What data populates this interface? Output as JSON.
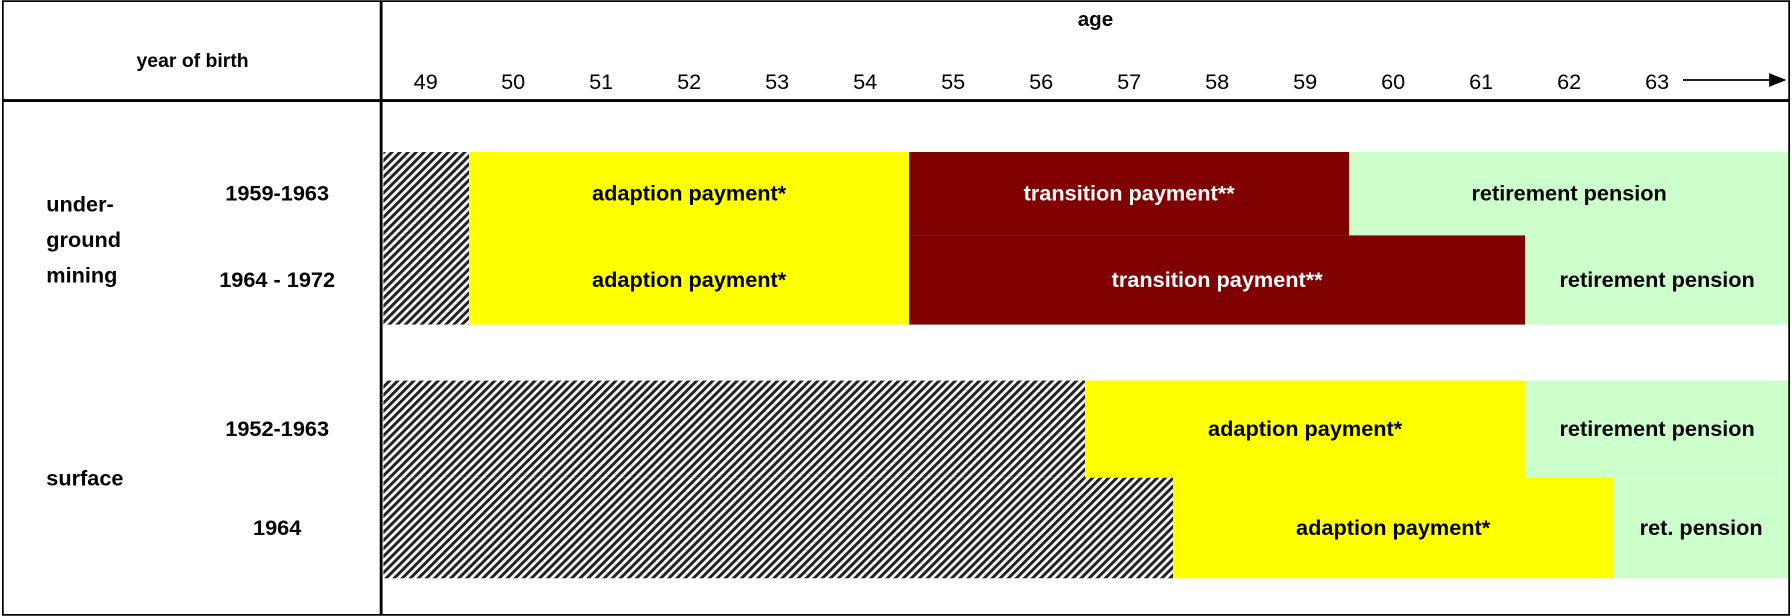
{
  "header": {
    "title": "year of birth",
    "age_label": "age",
    "ages": [
      49,
      50,
      51,
      52,
      53,
      54,
      55,
      56,
      57,
      58,
      59,
      60,
      61,
      62,
      63
    ]
  },
  "groups": [
    {
      "label": [
        "under-",
        "ground",
        "mining"
      ],
      "rows": [
        {
          "year": "1959-1963",
          "segments": [
            {
              "start": 49,
              "end": 49,
              "hatched": true
            },
            {
              "label": "adaption payment*",
              "start": 50,
              "end": 54,
              "color": "#ffff00"
            },
            {
              "label": "transition payment**",
              "start": 55,
              "end": 59,
              "color": "#800000"
            },
            {
              "label": "retirement pension",
              "start": 60,
              "end": 63,
              "color": "#ccffcc"
            }
          ]
        },
        {
          "year": "1964 - 1972",
          "segments": [
            {
              "start": 49,
              "end": 49,
              "hatched": true
            },
            {
              "label": "adaption payment*",
              "start": 50,
              "end": 54,
              "color": "#ffff00"
            },
            {
              "label": "transition payment**",
              "start": 55,
              "end": 61,
              "color": "#800000"
            },
            {
              "label": "retirement pension",
              "start": 62,
              "end": 63,
              "color": "#ccffcc"
            }
          ]
        }
      ]
    },
    {
      "label": [
        "surface"
      ],
      "rows": [
        {
          "year": "1952-1963",
          "segments": [
            {
              "start": 49,
              "end": 56,
              "hatched": true
            },
            {
              "label": "adaption payment*",
              "start": 57,
              "end": 61,
              "color": "#ffff00"
            },
            {
              "label": "retirement pension",
              "start": 62,
              "end": 63,
              "color": "#ccffcc"
            }
          ]
        },
        {
          "year": "1964",
          "segments": [
            {
              "start": 49,
              "end": 57,
              "hatched": true
            },
            {
              "label": "adaption payment*",
              "start": 58,
              "end": 62,
              "color": "#ffff00"
            },
            {
              "label": "ret. pension",
              "start": 63,
              "end": 63,
              "color": "#ccffcc"
            }
          ]
        }
      ]
    }
  ]
}
